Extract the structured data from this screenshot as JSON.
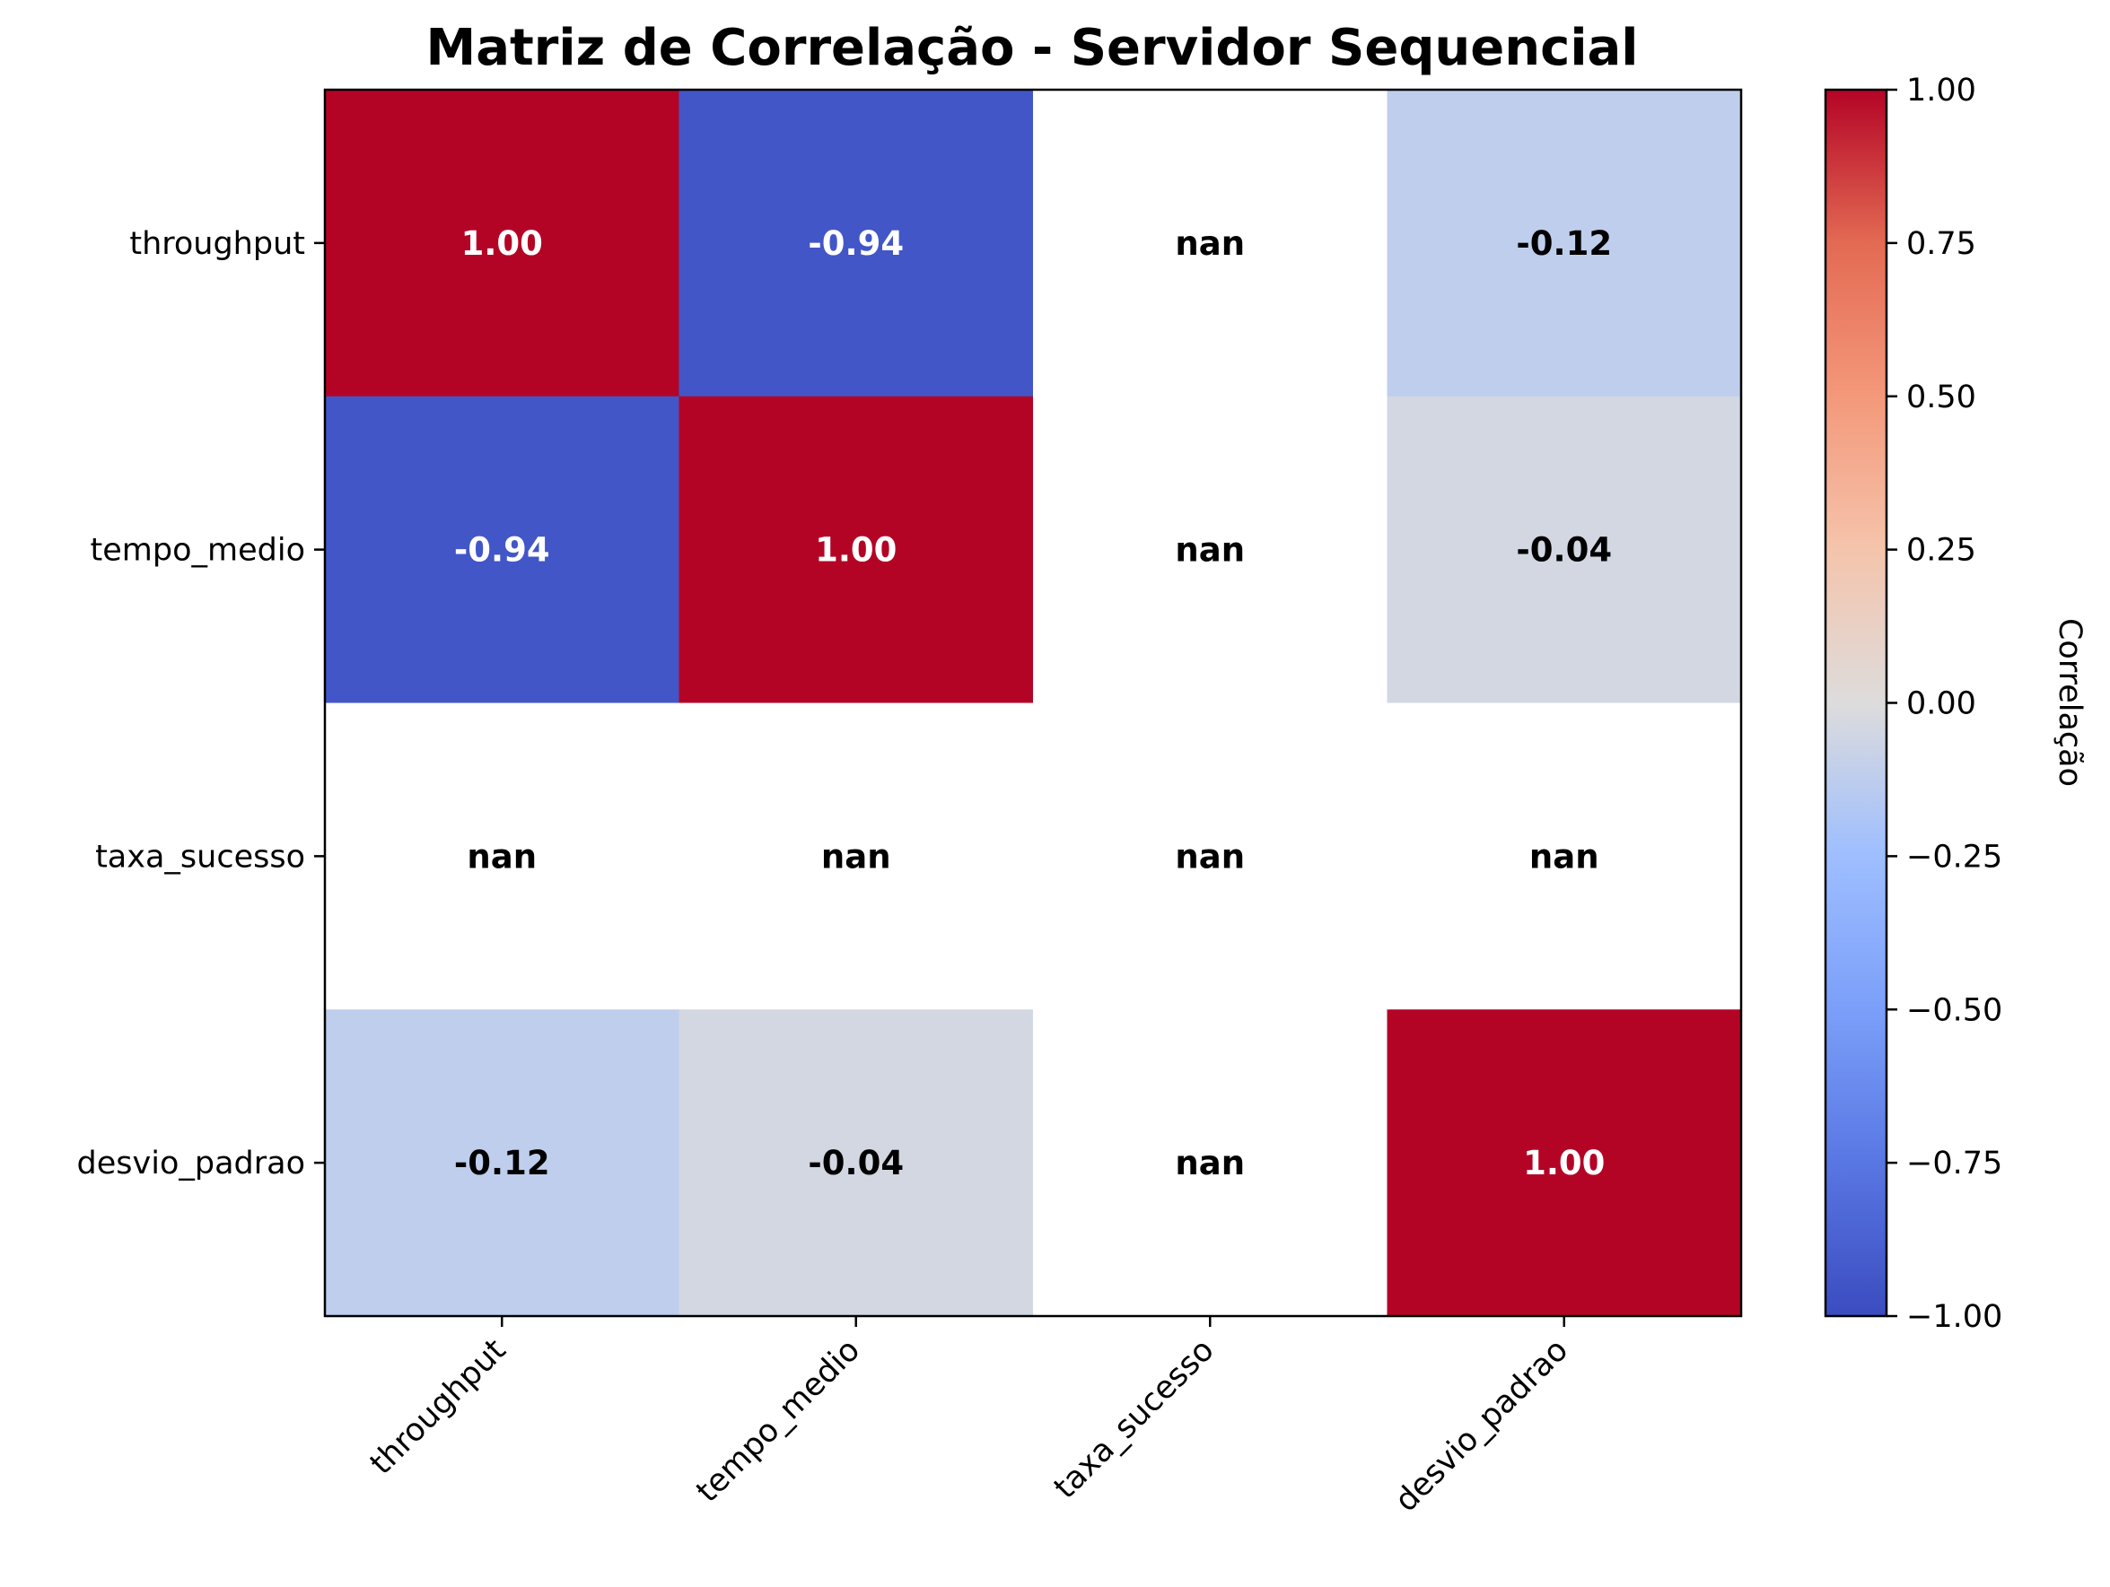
{
  "chart_data": {
    "type": "heatmap",
    "title": "Matriz de Correlação - Servidor Sequencial",
    "row_labels": [
      "throughput",
      "tempo_medio",
      "taxa_sucesso",
      "desvio_padrao"
    ],
    "col_labels": [
      "throughput",
      "tempo_medio",
      "taxa_sucesso",
      "desvio_padrao"
    ],
    "values": [
      [
        1.0,
        -0.94,
        null,
        -0.12
      ],
      [
        -0.94,
        1.0,
        null,
        -0.04
      ],
      [
        null,
        null,
        null,
        null
      ],
      [
        -0.12,
        -0.04,
        null,
        1.0
      ]
    ],
    "cell_labels": [
      [
        "1.00",
        "-0.94",
        "nan",
        "-0.12"
      ],
      [
        "-0.94",
        "1.00",
        "nan",
        "-0.04"
      ],
      [
        "nan",
        "nan",
        "nan",
        "nan"
      ],
      [
        "-0.12",
        "-0.04",
        "nan",
        "1.00"
      ]
    ],
    "colormap": "coolwarm",
    "vmin": -1.0,
    "vmax": 1.0,
    "colorbar": {
      "label": "Correlação",
      "ticks": [
        1.0,
        0.75,
        0.5,
        0.25,
        0.0,
        -0.25,
        -0.5,
        -0.75,
        -1.0
      ],
      "tick_labels": [
        "1.00",
        "0.75",
        "0.50",
        "0.25",
        "0.00",
        "−0.25",
        "−0.50",
        "−0.75",
        "−1.00"
      ]
    },
    "x_tick_rotation": 45,
    "grid": false
  }
}
